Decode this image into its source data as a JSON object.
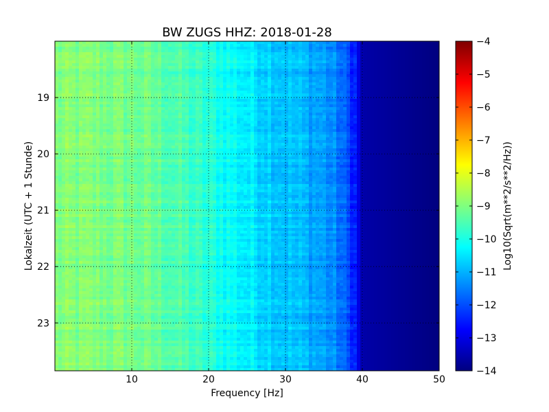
{
  "chart_data": {
    "type": "heatmap",
    "title": "BW ZUGS HHZ: 2018-01-28",
    "xlabel": "Frequency [Hz]",
    "ylabel": "Lokalzeit (UTC + 1 Stunde)",
    "xlim": [
      0,
      50
    ],
    "ylim": [
      18.0,
      23.85
    ],
    "y_inverted": true,
    "grid": true,
    "x_ticks": [
      10,
      20,
      30,
      40,
      50
    ],
    "x_tick_labels": [
      "10",
      "20",
      "30",
      "40",
      "50"
    ],
    "y_ticks": [
      19,
      20,
      21,
      22,
      23
    ],
    "y_tick_labels": [
      "19",
      "20",
      "21",
      "22",
      "23"
    ],
    "colormap": "jet",
    "colorbar": {
      "label": "Log10(Sqrt(m**2/s**2/Hz))",
      "range": [
        -14,
        -4
      ],
      "ticks": [
        -4,
        -5,
        -6,
        -7,
        -8,
        -9,
        -10,
        -11,
        -12,
        -13,
        -14
      ],
      "tick_labels": [
        "−4",
        "−5",
        "−6",
        "−7",
        "−8",
        "−9",
        "−10",
        "−11",
        "−12",
        "−13",
        "−14"
      ]
    },
    "spectrum_profile": {
      "frequency_hz": [
        0,
        5,
        10,
        15,
        20,
        25,
        30,
        35,
        37,
        39,
        40,
        50
      ],
      "log10_amplitude": [
        -9.0,
        -9.0,
        -9.1,
        -9.4,
        -9.9,
        -10.4,
        -10.8,
        -11.2,
        -11.6,
        -12.4,
        -13.6,
        -14.0
      ]
    }
  }
}
